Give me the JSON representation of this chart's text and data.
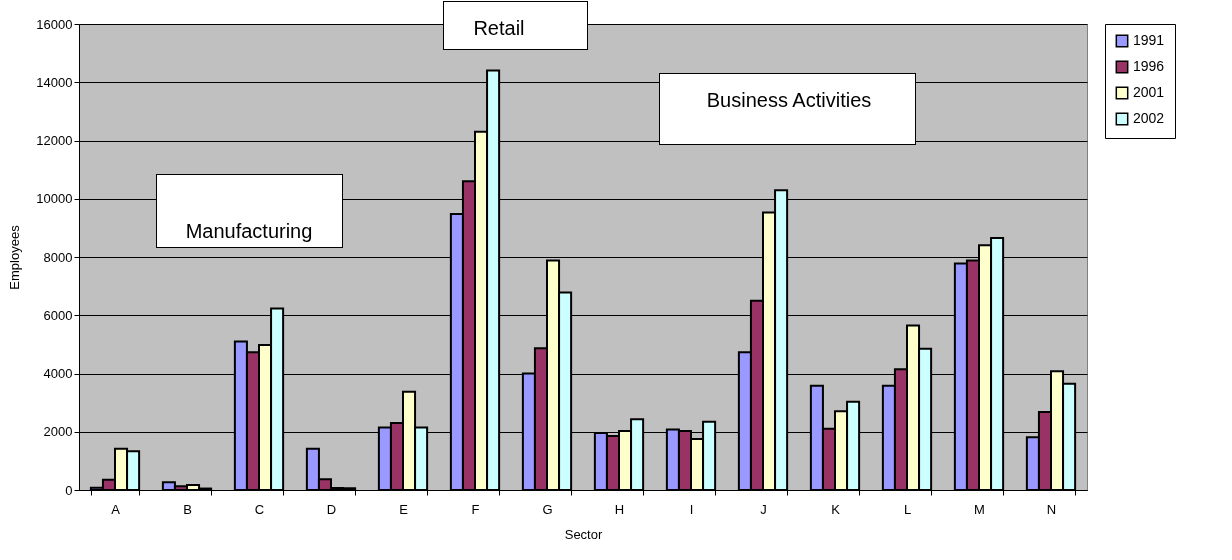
{
  "chart_data": {
    "type": "bar",
    "xlabel": "Sector",
    "ylabel": "Employees",
    "categories": [
      "A",
      "B",
      "C",
      "D",
      "E",
      "F",
      "G",
      "H",
      "I",
      "J",
      "K",
      "L",
      "M",
      "N"
    ],
    "series": [
      {
        "name": "1991",
        "color": "#9999ff",
        "values": [
          80,
          270,
          5100,
          1420,
          2150,
          9480,
          4000,
          1960,
          2080,
          4730,
          3580,
          3580,
          7780,
          1810
        ]
      },
      {
        "name": "1996",
        "color": "#993366",
        "values": [
          350,
          130,
          4730,
          370,
          2300,
          10600,
          4870,
          1850,
          2030,
          6500,
          2100,
          4150,
          7880,
          2680
        ]
      },
      {
        "name": "2001",
        "color": "#ffffcc",
        "values": [
          1420,
          170,
          4980,
          70,
          3370,
          12300,
          7880,
          2030,
          1750,
          9530,
          2700,
          5650,
          8400,
          4080
        ]
      },
      {
        "name": "2002",
        "color": "#ccffff",
        "values": [
          1330,
          50,
          6230,
          60,
          2150,
          14400,
          6780,
          2430,
          2340,
          10290,
          3030,
          4850,
          8650,
          3650
        ]
      }
    ],
    "ylim": [
      0,
      16000
    ],
    "yticks": [
      0,
      2000,
      4000,
      6000,
      8000,
      10000,
      12000,
      14000,
      16000
    ],
    "grid": "y",
    "legend": "right",
    "annotations": [
      "Manufacturing",
      "Retail",
      "Business Activities"
    ]
  }
}
